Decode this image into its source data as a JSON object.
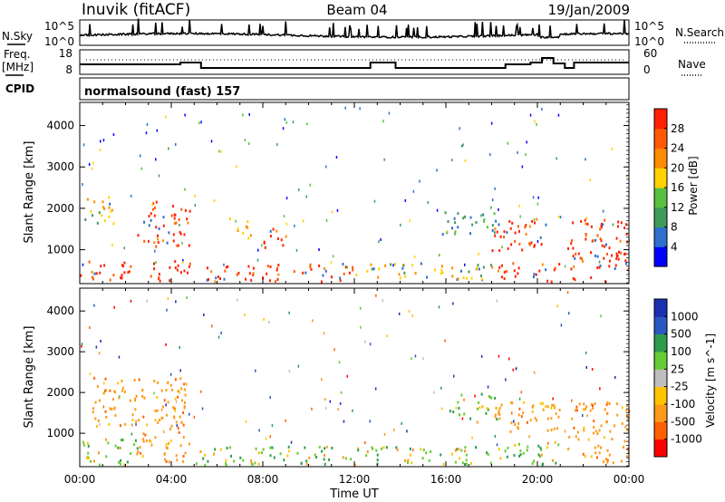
{
  "header": {
    "station": "Inuvik (fitACF)",
    "beam": "Beam 04",
    "date": "19/Jan/2009"
  },
  "noise_panel": {
    "left_label": "N.Sky",
    "right_label": "N.Search",
    "top_tick": "10^5",
    "bottom_tick": "10^0"
  },
  "freq_panel": {
    "left_label_line1": "Freq.",
    "left_label_line2": "[MHz]",
    "right_label": "Nave",
    "left_ticks": [
      "18",
      "8"
    ],
    "right_ticks": [
      "60",
      "0"
    ]
  },
  "cpid_label": "CPID",
  "mode_label": "normalsound (fast) 157",
  "x_axis": {
    "label": "Time UT",
    "ticks": [
      "00:00",
      "04:00",
      "08:00",
      "12:00",
      "16:00",
      "20:00",
      "00:00"
    ]
  },
  "colors": {
    "power": [
      "#0000ff",
      "#2e6fd0",
      "#3f9b5a",
      "#58c040",
      "#ffd200",
      "#ff8c00",
      "#ff5a00",
      "#ff2000"
    ],
    "velocity": [
      "#ff0000",
      "#ff6000",
      "#ff9a1a",
      "#ffc400",
      "#bebebe",
      "#66cc33",
      "#2e9b4a",
      "#2a58c0",
      "#1a30b0"
    ]
  },
  "chart_data": [
    {
      "type": "heatmap",
      "title": "",
      "xlabel": "Time UT",
      "ylabel": "Slant Range [km]",
      "ylim": [
        180,
        4560
      ],
      "xlim": [
        0,
        24
      ],
      "yticks": [
        "1000",
        "2000",
        "3000",
        "4000"
      ],
      "colorbar": {
        "label": "Power [dB]",
        "ticks": [
          "4",
          "8",
          "12",
          "16",
          "20",
          "24",
          "28"
        ],
        "range": [
          0,
          32
        ]
      },
      "regions": [
        {
          "t0": 0.0,
          "t1": 2.2,
          "r0": 250,
          "r1": 800,
          "level": "high"
        },
        {
          "t0": 0.2,
          "t1": 1.5,
          "r0": 1500,
          "r1": 2300,
          "level": "mid"
        },
        {
          "t0": 2.5,
          "t1": 4.8,
          "r0": 1100,
          "r1": 2200,
          "level": "high"
        },
        {
          "t0": 3.0,
          "t1": 4.8,
          "r0": 250,
          "r1": 800,
          "level": "high"
        },
        {
          "t0": 5.5,
          "t1": 12.0,
          "r0": 250,
          "r1": 700,
          "level": "high"
        },
        {
          "t0": 6.5,
          "t1": 7.5,
          "r0": 1300,
          "r1": 1800,
          "level": "mid"
        },
        {
          "t0": 8.0,
          "t1": 9.0,
          "r0": 1000,
          "r1": 1600,
          "level": "high"
        },
        {
          "t0": 12.0,
          "t1": 18.0,
          "r0": 300,
          "r1": 700,
          "level": "mid"
        },
        {
          "t0": 15.8,
          "t1": 18.3,
          "r0": 1400,
          "r1": 2000,
          "level": "low"
        },
        {
          "t0": 18.0,
          "t1": 20.5,
          "r0": 1000,
          "r1": 1800,
          "level": "high"
        },
        {
          "t0": 18.2,
          "t1": 21.0,
          "r0": 250,
          "r1": 700,
          "level": "high"
        },
        {
          "t0": 21.3,
          "t1": 24.0,
          "r0": 250,
          "r1": 1800,
          "level": "high"
        }
      ]
    },
    {
      "type": "heatmap",
      "title": "",
      "xlabel": "Time UT",
      "ylabel": "Slant Range [km]",
      "ylim": [
        180,
        4560
      ],
      "xlim": [
        0,
        24
      ],
      "yticks": [
        "1000",
        "2000",
        "3000",
        "4000"
      ],
      "colorbar": {
        "label": "Velocity [m s^-1]",
        "ticks": [
          "1000",
          "500",
          "100",
          "25",
          "-25",
          "-100",
          "-500",
          "-1000"
        ],
        "range": [
          -1000,
          1000
        ]
      },
      "regions": [
        {
          "t0": 0.0,
          "t1": 2.5,
          "r0": 250,
          "r1": 900,
          "level": "green"
        },
        {
          "t0": 0.5,
          "t1": 2.5,
          "r0": 1200,
          "r1": 2400,
          "level": "orange"
        },
        {
          "t0": 2.5,
          "t1": 4.8,
          "r0": 300,
          "r1": 2400,
          "level": "orange"
        },
        {
          "t0": 5.0,
          "t1": 12.5,
          "r0": 250,
          "r1": 700,
          "level": "green"
        },
        {
          "t0": 12.5,
          "t1": 18.0,
          "r0": 250,
          "r1": 700,
          "level": "green"
        },
        {
          "t0": 16.0,
          "t1": 18.2,
          "r0": 1300,
          "r1": 2000,
          "level": "green"
        },
        {
          "t0": 18.0,
          "t1": 21.0,
          "r0": 1000,
          "r1": 1800,
          "level": "orange"
        },
        {
          "t0": 18.2,
          "t1": 21.0,
          "r0": 250,
          "r1": 800,
          "level": "green"
        },
        {
          "t0": 21.3,
          "t1": 24.0,
          "r0": 300,
          "r1": 1800,
          "level": "orange"
        }
      ]
    }
  ]
}
